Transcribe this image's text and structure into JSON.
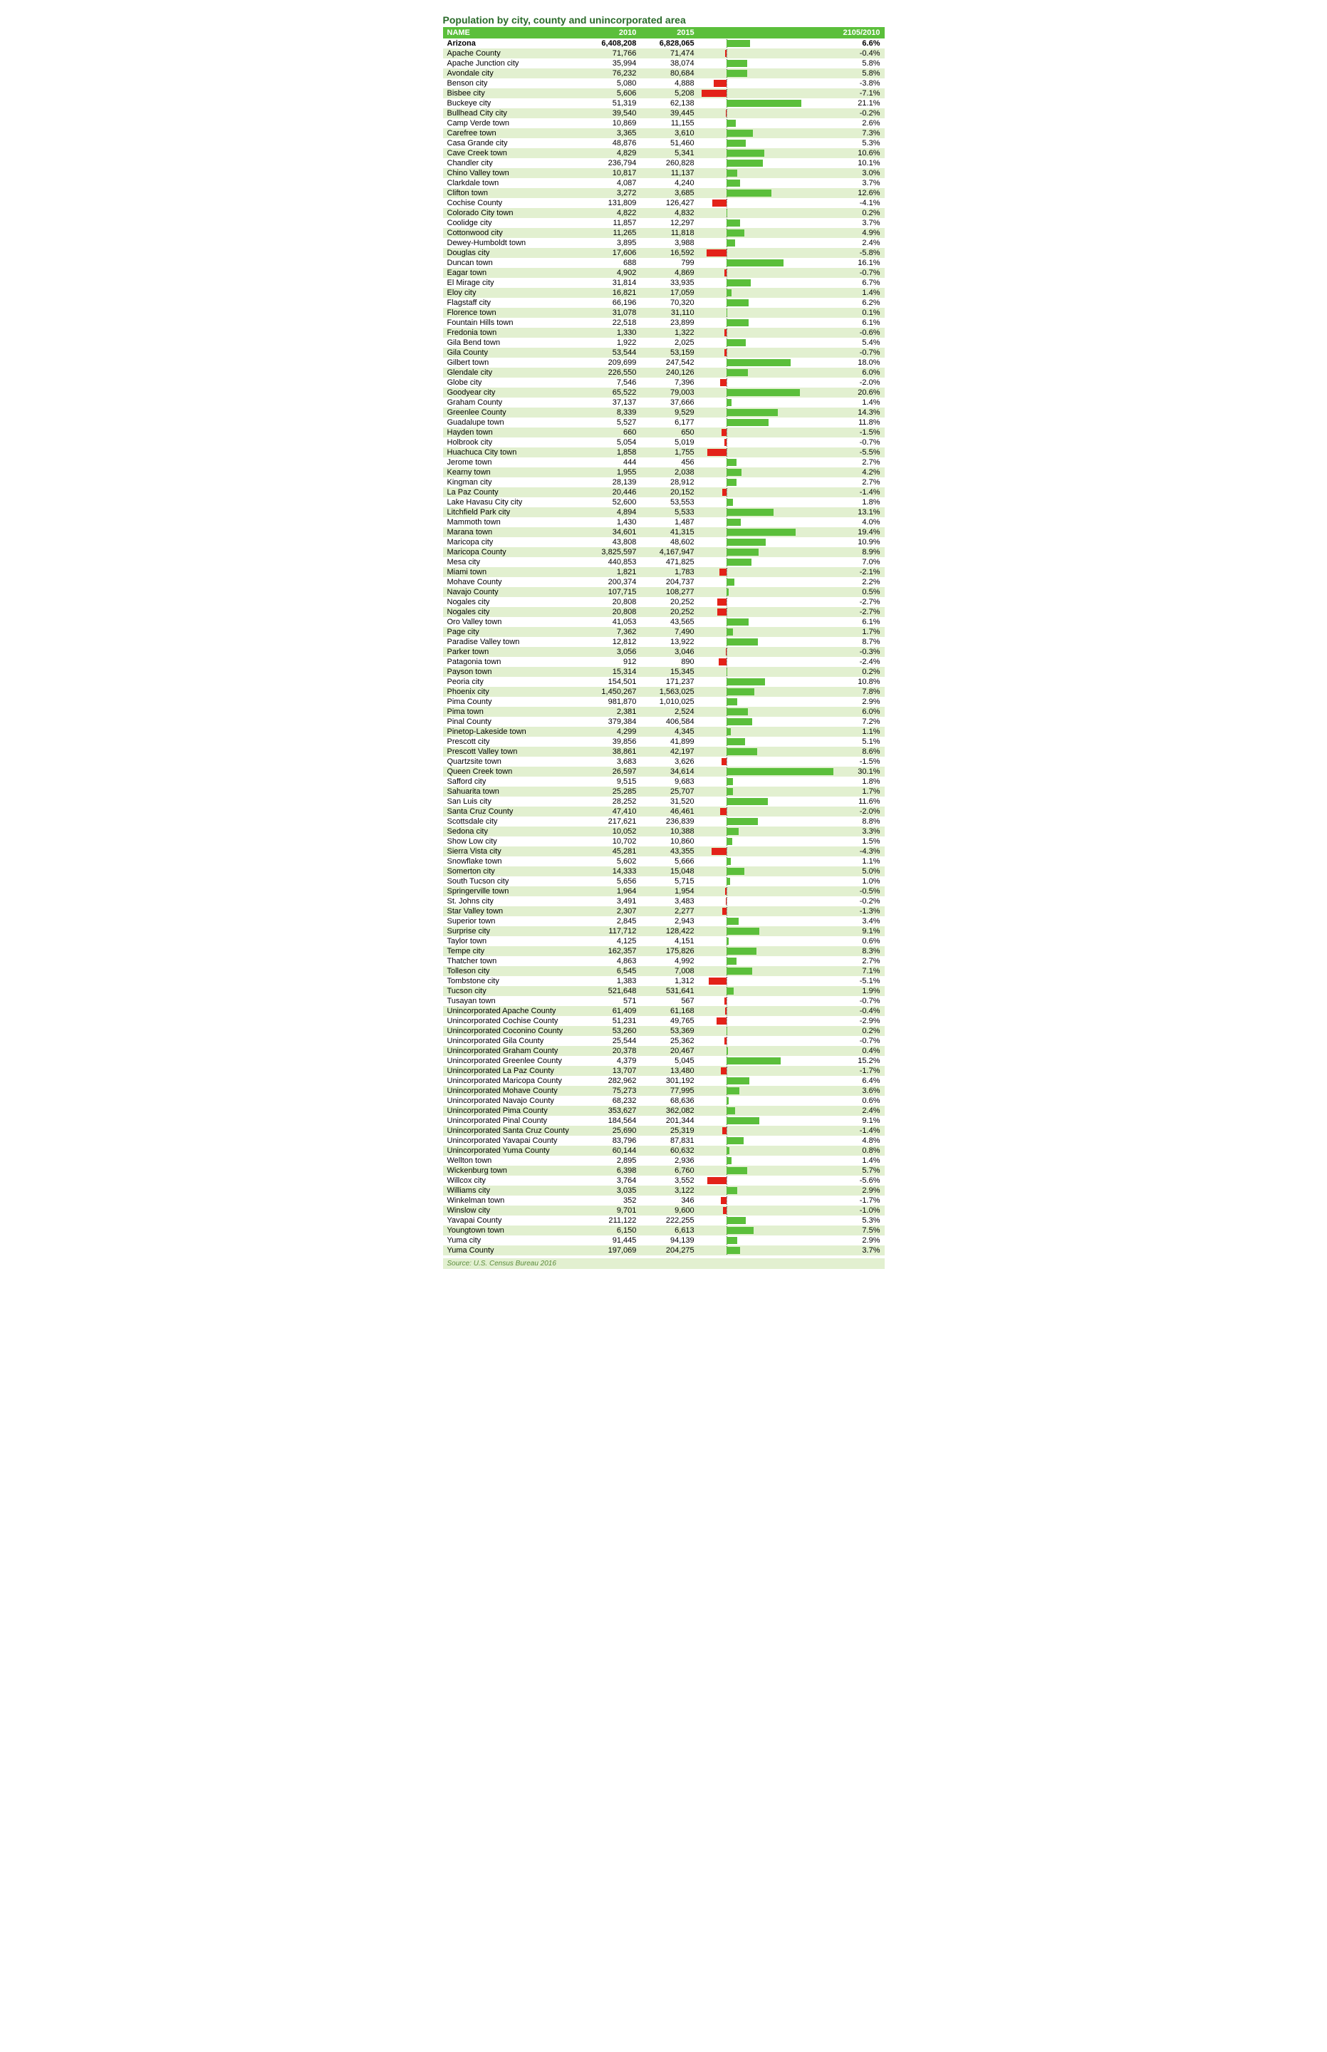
{
  "title": "Population by city, county and unincorporated area",
  "columns": [
    "NAME",
    "2010",
    "2015",
    "2105/2010"
  ],
  "source": "Source: U.S. Census Bureau 2016",
  "chart": {
    "min_pct": -8.0,
    "max_pct": 31.0,
    "pos_color": "#5bbf3b",
    "neg_color": "#e32219",
    "axis_color": "#555555",
    "row_even_bg": "#e2f0d0",
    "row_odd_bg": "#ffffff",
    "header_bg": "#5bbf3b",
    "header_fg": "#ffffff"
  },
  "rows": [
    {
      "name": "Arizona",
      "v2010": "6,408,208",
      "v2015": "6,828,065",
      "pct": 6.6,
      "bold": true
    },
    {
      "name": "Apache County",
      "v2010": "71,766",
      "v2015": "71,474",
      "pct": -0.4
    },
    {
      "name": "Apache Junction city",
      "v2010": "35,994",
      "v2015": "38,074",
      "pct": 5.8
    },
    {
      "name": "Avondale city",
      "v2010": "76,232",
      "v2015": "80,684",
      "pct": 5.8
    },
    {
      "name": "Benson city",
      "v2010": "5,080",
      "v2015": "4,888",
      "pct": -3.8
    },
    {
      "name": "Bisbee city",
      "v2010": "5,606",
      "v2015": "5,208",
      "pct": -7.1
    },
    {
      "name": "Buckeye city",
      "v2010": "51,319",
      "v2015": "62,138",
      "pct": 21.1
    },
    {
      "name": "Bullhead City city",
      "v2010": "39,540",
      "v2015": "39,445",
      "pct": -0.2
    },
    {
      "name": "Camp Verde town",
      "v2010": "10,869",
      "v2015": "11,155",
      "pct": 2.6
    },
    {
      "name": "Carefree town",
      "v2010": "3,365",
      "v2015": "3,610",
      "pct": 7.3
    },
    {
      "name": "Casa Grande city",
      "v2010": "48,876",
      "v2015": "51,460",
      "pct": 5.3
    },
    {
      "name": "Cave Creek town",
      "v2010": "4,829",
      "v2015": "5,341",
      "pct": 10.6
    },
    {
      "name": "Chandler city",
      "v2010": "236,794",
      "v2015": "260,828",
      "pct": 10.1
    },
    {
      "name": "Chino Valley town",
      "v2010": "10,817",
      "v2015": "11,137",
      "pct": 3.0
    },
    {
      "name": "Clarkdale town",
      "v2010": "4,087",
      "v2015": "4,240",
      "pct": 3.7
    },
    {
      "name": "Clifton town",
      "v2010": "3,272",
      "v2015": "3,685",
      "pct": 12.6
    },
    {
      "name": "Cochise County",
      "v2010": "131,809",
      "v2015": "126,427",
      "pct": -4.1
    },
    {
      "name": "Colorado City town",
      "v2010": "4,822",
      "v2015": "4,832",
      "pct": 0.2
    },
    {
      "name": "Coolidge city",
      "v2010": "11,857",
      "v2015": "12,297",
      "pct": 3.7
    },
    {
      "name": "Cottonwood city",
      "v2010": "11,265",
      "v2015": "11,818",
      "pct": 4.9
    },
    {
      "name": "Dewey-Humboldt town",
      "v2010": "3,895",
      "v2015": "3,988",
      "pct": 2.4
    },
    {
      "name": "Douglas city",
      "v2010": "17,606",
      "v2015": "16,592",
      "pct": -5.8
    },
    {
      "name": "Duncan town",
      "v2010": "688",
      "v2015": "799",
      "pct": 16.1
    },
    {
      "name": "Eagar town",
      "v2010": "4,902",
      "v2015": "4,869",
      "pct": -0.7
    },
    {
      "name": "El Mirage city",
      "v2010": "31,814",
      "v2015": "33,935",
      "pct": 6.7
    },
    {
      "name": "Eloy city",
      "v2010": "16,821",
      "v2015": "17,059",
      "pct": 1.4
    },
    {
      "name": "Flagstaff city",
      "v2010": "66,196",
      "v2015": "70,320",
      "pct": 6.2
    },
    {
      "name": "Florence town",
      "v2010": "31,078",
      "v2015": "31,110",
      "pct": 0.1
    },
    {
      "name": "Fountain Hills town",
      "v2010": "22,518",
      "v2015": "23,899",
      "pct": 6.1
    },
    {
      "name": "Fredonia town",
      "v2010": "1,330",
      "v2015": "1,322",
      "pct": -0.6
    },
    {
      "name": "Gila Bend town",
      "v2010": "1,922",
      "v2015": "2,025",
      "pct": 5.4
    },
    {
      "name": "Gila County",
      "v2010": "53,544",
      "v2015": "53,159",
      "pct": -0.7
    },
    {
      "name": "Gilbert town",
      "v2010": "209,699",
      "v2015": "247,542",
      "pct": 18.0
    },
    {
      "name": "Glendale city",
      "v2010": "226,550",
      "v2015": "240,126",
      "pct": 6.0
    },
    {
      "name": "Globe city",
      "v2010": "7,546",
      "v2015": "7,396",
      "pct": -2.0
    },
    {
      "name": "Goodyear city",
      "v2010": "65,522",
      "v2015": "79,003",
      "pct": 20.6
    },
    {
      "name": "Graham County",
      "v2010": "37,137",
      "v2015": "37,666",
      "pct": 1.4
    },
    {
      "name": "Greenlee County",
      "v2010": "8,339",
      "v2015": "9,529",
      "pct": 14.3
    },
    {
      "name": "Guadalupe town",
      "v2010": "5,527",
      "v2015": "6,177",
      "pct": 11.8
    },
    {
      "name": "Hayden town",
      "v2010": "660",
      "v2015": "650",
      "pct": -1.5
    },
    {
      "name": "Holbrook city",
      "v2010": "5,054",
      "v2015": "5,019",
      "pct": -0.7
    },
    {
      "name": "Huachuca City town",
      "v2010": "1,858",
      "v2015": "1,755",
      "pct": -5.5
    },
    {
      "name": "Jerome town",
      "v2010": "444",
      "v2015": "456",
      "pct": 2.7
    },
    {
      "name": "Kearny town",
      "v2010": "1,955",
      "v2015": "2,038",
      "pct": 4.2
    },
    {
      "name": "Kingman city",
      "v2010": "28,139",
      "v2015": "28,912",
      "pct": 2.7
    },
    {
      "name": "La Paz County",
      "v2010": "20,446",
      "v2015": "20,152",
      "pct": -1.4
    },
    {
      "name": "Lake Havasu City city",
      "v2010": "52,600",
      "v2015": "53,553",
      "pct": 1.8
    },
    {
      "name": "Litchfield Park city",
      "v2010": "4,894",
      "v2015": "5,533",
      "pct": 13.1
    },
    {
      "name": "Mammoth town",
      "v2010": "1,430",
      "v2015": "1,487",
      "pct": 4.0
    },
    {
      "name": "Marana town",
      "v2010": "34,601",
      "v2015": "41,315",
      "pct": 19.4
    },
    {
      "name": "Maricopa city",
      "v2010": "43,808",
      "v2015": "48,602",
      "pct": 10.9
    },
    {
      "name": "Maricopa County",
      "v2010": "3,825,597",
      "v2015": "4,167,947",
      "pct": 8.9
    },
    {
      "name": "Mesa city",
      "v2010": "440,853",
      "v2015": "471,825",
      "pct": 7.0
    },
    {
      "name": "Miami town",
      "v2010": "1,821",
      "v2015": "1,783",
      "pct": -2.1
    },
    {
      "name": "Mohave County",
      "v2010": "200,374",
      "v2015": "204,737",
      "pct": 2.2
    },
    {
      "name": "Navajo County",
      "v2010": "107,715",
      "v2015": "108,277",
      "pct": 0.5
    },
    {
      "name": "Nogales city",
      "v2010": "20,808",
      "v2015": "20,252",
      "pct": -2.7
    },
    {
      "name": "Nogales city",
      "v2010": "20,808",
      "v2015": "20,252",
      "pct": -2.7
    },
    {
      "name": "Oro Valley town",
      "v2010": "41,053",
      "v2015": "43,565",
      "pct": 6.1
    },
    {
      "name": "Page city",
      "v2010": "7,362",
      "v2015": "7,490",
      "pct": 1.7
    },
    {
      "name": "Paradise Valley town",
      "v2010": "12,812",
      "v2015": "13,922",
      "pct": 8.7
    },
    {
      "name": "Parker town",
      "v2010": "3,056",
      "v2015": "3,046",
      "pct": -0.3
    },
    {
      "name": "Patagonia town",
      "v2010": "912",
      "v2015": "890",
      "pct": -2.4
    },
    {
      "name": "Payson town",
      "v2010": "15,314",
      "v2015": "15,345",
      "pct": 0.2
    },
    {
      "name": "Peoria city",
      "v2010": "154,501",
      "v2015": "171,237",
      "pct": 10.8
    },
    {
      "name": "Phoenix city",
      "v2010": "1,450,267",
      "v2015": "1,563,025",
      "pct": 7.8
    },
    {
      "name": "Pima County",
      "v2010": "981,870",
      "v2015": "1,010,025",
      "pct": 2.9
    },
    {
      "name": "Pima town",
      "v2010": "2,381",
      "v2015": "2,524",
      "pct": 6.0
    },
    {
      "name": "Pinal County",
      "v2010": "379,384",
      "v2015": "406,584",
      "pct": 7.2
    },
    {
      "name": "Pinetop-Lakeside town",
      "v2010": "4,299",
      "v2015": "4,345",
      "pct": 1.1
    },
    {
      "name": "Prescott city",
      "v2010": "39,856",
      "v2015": "41,899",
      "pct": 5.1
    },
    {
      "name": "Prescott Valley town",
      "v2010": "38,861",
      "v2015": "42,197",
      "pct": 8.6
    },
    {
      "name": "Quartzsite town",
      "v2010": "3,683",
      "v2015": "3,626",
      "pct": -1.5
    },
    {
      "name": "Queen Creek town",
      "v2010": "26,597",
      "v2015": "34,614",
      "pct": 30.1
    },
    {
      "name": "Safford city",
      "v2010": "9,515",
      "v2015": "9,683",
      "pct": 1.8
    },
    {
      "name": "Sahuarita town",
      "v2010": "25,285",
      "v2015": "25,707",
      "pct": 1.7
    },
    {
      "name": "San Luis city",
      "v2010": "28,252",
      "v2015": "31,520",
      "pct": 11.6
    },
    {
      "name": "Santa Cruz County",
      "v2010": "47,410",
      "v2015": "46,461",
      "pct": -2.0
    },
    {
      "name": "Scottsdale city",
      "v2010": "217,621",
      "v2015": "236,839",
      "pct": 8.8
    },
    {
      "name": "Sedona city",
      "v2010": "10,052",
      "v2015": "10,388",
      "pct": 3.3
    },
    {
      "name": "Show Low city",
      "v2010": "10,702",
      "v2015": "10,860",
      "pct": 1.5
    },
    {
      "name": "Sierra Vista city",
      "v2010": "45,281",
      "v2015": "43,355",
      "pct": -4.3
    },
    {
      "name": "Snowflake town",
      "v2010": "5,602",
      "v2015": "5,666",
      "pct": 1.1
    },
    {
      "name": "Somerton city",
      "v2010": "14,333",
      "v2015": "15,048",
      "pct": 5.0
    },
    {
      "name": "South Tucson city",
      "v2010": "5,656",
      "v2015": "5,715",
      "pct": 1.0
    },
    {
      "name": "Springerville town",
      "v2010": "1,964",
      "v2015": "1,954",
      "pct": -0.5
    },
    {
      "name": "St. Johns city",
      "v2010": "3,491",
      "v2015": "3,483",
      "pct": -0.2
    },
    {
      "name": "Star Valley town",
      "v2010": "2,307",
      "v2015": "2,277",
      "pct": -1.3
    },
    {
      "name": "Superior town",
      "v2010": "2,845",
      "v2015": "2,943",
      "pct": 3.4
    },
    {
      "name": "Surprise city",
      "v2010": "117,712",
      "v2015": "128,422",
      "pct": 9.1
    },
    {
      "name": "Taylor town",
      "v2010": "4,125",
      "v2015": "4,151",
      "pct": 0.6
    },
    {
      "name": "Tempe city",
      "v2010": "162,357",
      "v2015": "175,826",
      "pct": 8.3
    },
    {
      "name": "Thatcher town",
      "v2010": "4,863",
      "v2015": "4,992",
      "pct": 2.7
    },
    {
      "name": "Tolleson city",
      "v2010": "6,545",
      "v2015": "7,008",
      "pct": 7.1
    },
    {
      "name": "Tombstone city",
      "v2010": "1,383",
      "v2015": "1,312",
      "pct": -5.1
    },
    {
      "name": "Tucson city",
      "v2010": "521,648",
      "v2015": "531,641",
      "pct": 1.9
    },
    {
      "name": "Tusayan town",
      "v2010": "571",
      "v2015": "567",
      "pct": -0.7
    },
    {
      "name": "Unincorporated Apache County",
      "v2010": "61,409",
      "v2015": "61,168",
      "pct": -0.4
    },
    {
      "name": "Unincorporated Cochise County",
      "v2010": "51,231",
      "v2015": "49,765",
      "pct": -2.9
    },
    {
      "name": "Unincorporated Coconino County",
      "v2010": "53,260",
      "v2015": "53,369",
      "pct": 0.2
    },
    {
      "name": "Unincorporated Gila County",
      "v2010": "25,544",
      "v2015": "25,362",
      "pct": -0.7
    },
    {
      "name": "Unincorporated Graham County",
      "v2010": "20,378",
      "v2015": "20,467",
      "pct": 0.4
    },
    {
      "name": "Unincorporated Greenlee County",
      "v2010": "4,379",
      "v2015": "5,045",
      "pct": 15.2
    },
    {
      "name": "Unincorporated La Paz County",
      "v2010": "13,707",
      "v2015": "13,480",
      "pct": -1.7
    },
    {
      "name": "Unincorporated Maricopa County",
      "v2010": "282,962",
      "v2015": "301,192",
      "pct": 6.4
    },
    {
      "name": "Unincorporated Mohave County",
      "v2010": "75,273",
      "v2015": "77,995",
      "pct": 3.6
    },
    {
      "name": "Unincorporated Navajo County",
      "v2010": "68,232",
      "v2015": "68,636",
      "pct": 0.6
    },
    {
      "name": "Unincorporated Pima County",
      "v2010": "353,627",
      "v2015": "362,082",
      "pct": 2.4
    },
    {
      "name": "Unincorporated Pinal County",
      "v2010": "184,564",
      "v2015": "201,344",
      "pct": 9.1
    },
    {
      "name": "Unincorporated Santa Cruz County",
      "v2010": "25,690",
      "v2015": "25,319",
      "pct": -1.4
    },
    {
      "name": "Unincorporated Yavapai County",
      "v2010": "83,796",
      "v2015": "87,831",
      "pct": 4.8
    },
    {
      "name": "Unincorporated Yuma County",
      "v2010": "60,144",
      "v2015": "60,632",
      "pct": 0.8
    },
    {
      "name": "Wellton town",
      "v2010": "2,895",
      "v2015": "2,936",
      "pct": 1.4
    },
    {
      "name": "Wickenburg town",
      "v2010": "6,398",
      "v2015": "6,760",
      "pct": 5.7
    },
    {
      "name": "Willcox city",
      "v2010": "3,764",
      "v2015": "3,552",
      "pct": -5.6
    },
    {
      "name": "Williams city",
      "v2010": "3,035",
      "v2015": "3,122",
      "pct": 2.9
    },
    {
      "name": "Winkelman town",
      "v2010": "352",
      "v2015": "346",
      "pct": -1.7
    },
    {
      "name": "Winslow city",
      "v2010": "9,701",
      "v2015": "9,600",
      "pct": -1.0
    },
    {
      "name": "Yavapai County",
      "v2010": "211,122",
      "v2015": "222,255",
      "pct": 5.3
    },
    {
      "name": "Youngtown town",
      "v2010": "6,150",
      "v2015": "6,613",
      "pct": 7.5
    },
    {
      "name": "Yuma city",
      "v2010": "91,445",
      "v2015": "94,139",
      "pct": 2.9
    },
    {
      "name": "Yuma County",
      "v2010": "197,069",
      "v2015": "204,275",
      "pct": 3.7
    }
  ]
}
